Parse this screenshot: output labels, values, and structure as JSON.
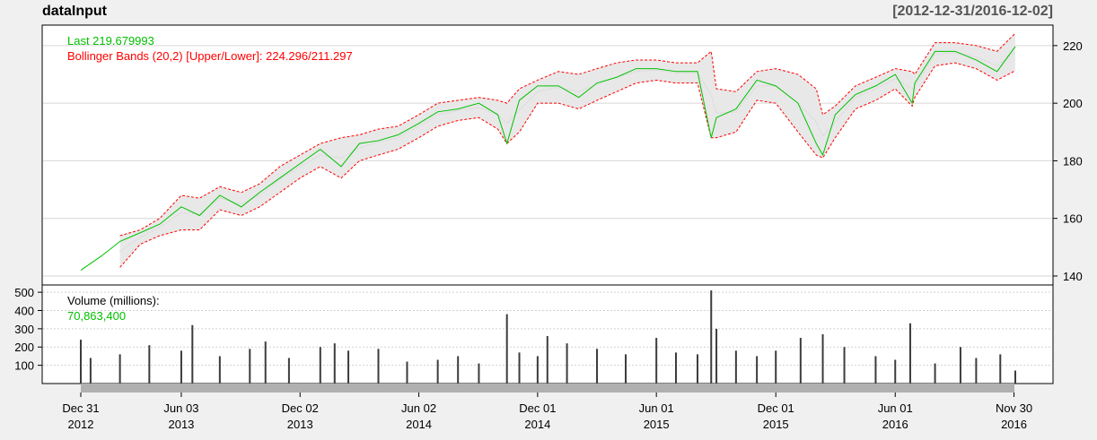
{
  "chart_data": [
    {
      "type": "line",
      "name": "price-panel",
      "title": "dataInput",
      "date_range": "[2012-12-31/2016-12-02]",
      "legend": [
        "Last 219.679993",
        "Bollinger Bands (20,2) [Upper/Lower]: 224.296/211.297"
      ],
      "legend_placement": "top-left",
      "y_axis_side": "right",
      "y_ticks": [
        "140",
        "160",
        "180",
        "200",
        "220"
      ],
      "ylim": [
        137.5,
        226.5
      ],
      "grid": true,
      "colors": {
        "last": "#00c000",
        "bands": "#ff0000",
        "band_fill": "#e8e8e8"
      },
      "x_dates": [
        "2012-12-31",
        "2013-02-01",
        "2013-03-01",
        "2013-04-01",
        "2013-05-01",
        "2013-06-03",
        "2013-07-01",
        "2013-08-01",
        "2013-09-03",
        "2013-10-01",
        "2013-11-01",
        "2013-12-02",
        "2014-01-02",
        "2014-02-03",
        "2014-03-03",
        "2014-04-01",
        "2014-05-01",
        "2014-06-02",
        "2014-07-01",
        "2014-08-01",
        "2014-09-02",
        "2014-10-01",
        "2014-10-15",
        "2014-11-03",
        "2014-12-01",
        "2015-01-02",
        "2015-02-02",
        "2015-03-02",
        "2015-04-01",
        "2015-05-01",
        "2015-06-01",
        "2015-07-01",
        "2015-08-03",
        "2015-08-24",
        "2015-09-01",
        "2015-10-01",
        "2015-11-02",
        "2015-12-01",
        "2016-01-04",
        "2016-02-01",
        "2016-02-11",
        "2016-03-01",
        "2016-04-01",
        "2016-05-02",
        "2016-06-01",
        "2016-06-27",
        "2016-07-01",
        "2016-08-01",
        "2016-09-01",
        "2016-10-03",
        "2016-11-04",
        "2016-12-02"
      ],
      "series": [
        {
          "name": "Last",
          "values": [
            142,
            147,
            152,
            155,
            158,
            164,
            161,
            168,
            164,
            169,
            174,
            179,
            184,
            178,
            186,
            187,
            189,
            193,
            197,
            198,
            200,
            196,
            186,
            201,
            206,
            206,
            202,
            207,
            209,
            212,
            212,
            211,
            211,
            188,
            195,
            198,
            208,
            206,
            200,
            186,
            182,
            196,
            203,
            206,
            210,
            200,
            207,
            218,
            218,
            215,
            211,
            219.68
          ]
        },
        {
          "name": "Bollinger Upper",
          "values": [
            null,
            null,
            154,
            156,
            160,
            168,
            167,
            171,
            169,
            172,
            178,
            182,
            186,
            188,
            189,
            191,
            192,
            196,
            200,
            201,
            202,
            201,
            200,
            205,
            208,
            211,
            210,
            212,
            214,
            215,
            215,
            214,
            214,
            218,
            205,
            204,
            211,
            212,
            210,
            205,
            196,
            199,
            206,
            209,
            212,
            211,
            210,
            221,
            221,
            220,
            218,
            224.296
          ]
        },
        {
          "name": "Bollinger Lower",
          "values": [
            null,
            null,
            143,
            151,
            154,
            156,
            156,
            163,
            161,
            164,
            169,
            174,
            178,
            174,
            180,
            182,
            184,
            188,
            192,
            194,
            195,
            191,
            186,
            190,
            200,
            200,
            198,
            201,
            204,
            207,
            208,
            207,
            207,
            188,
            188,
            190,
            201,
            200,
            190,
            182,
            181,
            188,
            198,
            201,
            205,
            199,
            202,
            213,
            214,
            212,
            208,
            211.297
          ]
        }
      ]
    },
    {
      "type": "bar",
      "name": "volume-panel",
      "legend": [
        "Volume (millions):",
        "70,863,400"
      ],
      "y_ticks": [
        "100",
        "200",
        "300",
        "400",
        "500"
      ],
      "ylim": [
        0,
        530
      ],
      "colors": {
        "bars": "#3c3c3c",
        "value": "#00c000"
      },
      "x_dates": [
        "2012-12-31",
        "2013-01-15",
        "2013-03-01",
        "2013-04-15",
        "2013-06-03",
        "2013-06-20",
        "2013-08-01",
        "2013-09-16",
        "2013-10-10",
        "2013-11-15",
        "2014-01-02",
        "2014-01-24",
        "2014-02-14",
        "2014-04-01",
        "2014-05-15",
        "2014-07-01",
        "2014-08-01",
        "2014-09-02",
        "2014-10-15",
        "2014-11-03",
        "2014-12-01",
        "2014-12-16",
        "2015-01-15",
        "2015-03-02",
        "2015-04-15",
        "2015-06-01",
        "2015-07-01",
        "2015-08-03",
        "2015-08-24",
        "2015-09-01",
        "2015-10-01",
        "2015-11-02",
        "2015-12-01",
        "2016-01-08",
        "2016-02-11",
        "2016-03-15",
        "2016-05-02",
        "2016-06-01",
        "2016-06-24",
        "2016-08-01",
        "2016-09-09",
        "2016-10-03",
        "2016-11-09",
        "2016-12-02"
      ],
      "values": [
        240,
        140,
        160,
        210,
        180,
        320,
        150,
        190,
        230,
        140,
        200,
        220,
        180,
        190,
        120,
        130,
        150,
        110,
        380,
        170,
        150,
        260,
        220,
        190,
        160,
        250,
        170,
        160,
        510,
        300,
        180,
        150,
        180,
        250,
        270,
        200,
        150,
        130,
        330,
        110,
        200,
        140,
        160,
        71
      ]
    }
  ],
  "x_axis": {
    "ticks": [
      {
        "month": "Dec 31",
        "year": "2012",
        "date": "2012-12-31"
      },
      {
        "month": "Jun 03",
        "year": "2013",
        "date": "2013-06-03"
      },
      {
        "month": "Dec 02",
        "year": "2013",
        "date": "2013-12-02"
      },
      {
        "month": "Jun 02",
        "year": "2014",
        "date": "2014-06-02"
      },
      {
        "month": "Dec 01",
        "year": "2014",
        "date": "2014-12-01"
      },
      {
        "month": "Jun 01",
        "year": "2015",
        "date": "2015-06-01"
      },
      {
        "month": "Dec 01",
        "year": "2015",
        "date": "2015-12-01"
      },
      {
        "month": "Jun 01",
        "year": "2016",
        "date": "2016-06-01"
      },
      {
        "month": "Nov 30",
        "year": "2016",
        "date": "2016-11-30"
      }
    ]
  }
}
